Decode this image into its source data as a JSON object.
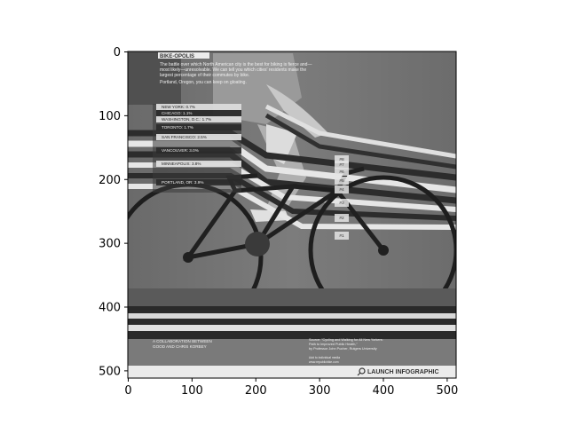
{
  "axes": {
    "x_ticks": [
      "0",
      "100",
      "200",
      "300",
      "400",
      "500"
    ],
    "y_ticks": [
      "0",
      "100",
      "200",
      "300",
      "400",
      "500"
    ]
  },
  "infographic": {
    "brand": "BIKE-OPOLIS",
    "intro": [
      "The battle over which North American city is the best for biking is fierce and—",
      "most likely—unresolvable. We can tell you which cities' residents make the",
      "largest percentage of their commutes by bike."
    ],
    "tagline": "Portland, Oregon, you can keep on gloating.",
    "cities": [
      {
        "label": "NEW YORK: 0.7%"
      },
      {
        "label": "CHICAGO: 1.1%"
      },
      {
        "label": "WASHINGTON, D.C.: 1.7%"
      },
      {
        "label": "TORONTO: 1.7%"
      },
      {
        "label": "SAN FRANCISCO: 2.5%"
      },
      {
        "label": "VANCOUVER: 3.0%"
      },
      {
        "label": "MINNEAPOLIS: 3.8%"
      },
      {
        "label": "PORTLAND, OR: 3.9%"
      }
    ],
    "ranks": [
      "#8",
      "#7",
      "#6",
      "#5",
      "#4",
      "#3",
      "#2",
      "#1"
    ],
    "collab": [
      "A COLLABORATION BETWEEN",
      "GOOD AND CHRIS KORBEY"
    ],
    "source": [
      "Source: \"Cycling and Walking for All New Yorkers:",
      "Path to Improved Public Health,\"",
      "by Professor John Pucher, Rutgers University"
    ],
    "footer_small": [
      "Add to individual media",
      "www.republicbike.com"
    ],
    "launch": "LAUNCH INFOGRAPHIC"
  }
}
